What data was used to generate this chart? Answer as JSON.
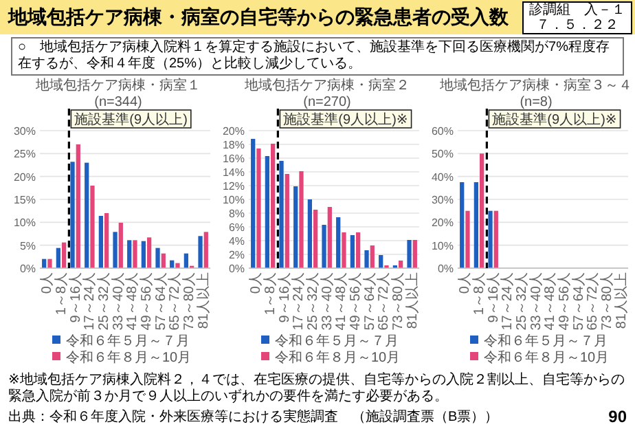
{
  "chart_data": [
    {
      "type": "other",
      "title": "地域包括ケア病棟・病室の自宅等からの緊急患者の受入数",
      "annotations": [
        "診調組　入－１",
        "７．５．２２",
        "○　地域包括ケア病棟入院料１を算定する施設において、施設基準を下回る医療機関が7%程度存在するが、令和４年度（25%）と比較し減少している。",
        "※地域包括ケア病棟入院料２，４では、在宅医療の提供、自宅等からの入院２割以上、自宅等からの緊急入院が前３か月で９人以上のいずれかの要件を満たす必要がある。",
        "出典：令和６年度入院・外来医療等における実態調査　（施設調査票（B票））",
        "90"
      ]
    },
    {
      "type": "bar",
      "title": "地域包括ケア病棟・病室１",
      "subtitle": "(n=344)",
      "categories": [
        "0人",
        "1～8人",
        "9～16人",
        "17～24人",
        "25～32人",
        "33～40人",
        "41～48人",
        "49～56人",
        "57～64人",
        "65～72人",
        "73～80人",
        "81人以上"
      ],
      "series": [
        {
          "name": "令和６年５月～７月",
          "color": "#1f5fbf",
          "values": [
            2.0,
            4.4,
            23.2,
            23.0,
            11.4,
            7.9,
            6.1,
            5.9,
            4.4,
            1.7,
            3.2,
            7.0
          ]
        },
        {
          "name": "令和６年８月～10月",
          "color": "#e5467a",
          "values": [
            2.0,
            5.6,
            27.0,
            18.0,
            12.0,
            9.9,
            6.1,
            6.7,
            3.2,
            1.1,
            0.5,
            7.9
          ]
        }
      ],
      "ylim": [
        0,
        30
      ],
      "yticks": [
        {
          "value": 0,
          "label": "0%"
        },
        {
          "value": 5,
          "label": "5%"
        },
        {
          "value": 10,
          "label": "10%"
        },
        {
          "value": 15,
          "label": "15%"
        },
        {
          "value": 20,
          "label": "20%"
        },
        {
          "value": 25,
          "label": "25%"
        },
        {
          "value": 30,
          "label": "30%"
        }
      ],
      "ref_lines": [
        {
          "axis": "x",
          "value": "9～16人",
          "label": "施設基準(9人以上)",
          "line_style": "dashed",
          "color": "#000000"
        }
      ],
      "grid": "y",
      "legend": "bottom"
    },
    {
      "type": "bar",
      "title": "地域包括ケア病棟・病室２",
      "subtitle": "(n=270)",
      "categories": [
        "0人",
        "1～8人",
        "9～16人",
        "17～24人",
        "25～32人",
        "33～40人",
        "41～48人",
        "49～56人",
        "57～64人",
        "65～72人",
        "73～80人",
        "81人以上"
      ],
      "series": [
        {
          "name": "令和６年５月～７月",
          "color": "#1f5fbf",
          "values": [
            18.8,
            16.3,
            15.6,
            11.9,
            10.0,
            6.3,
            7.4,
            4.8,
            2.6,
            1.9,
            0.4,
            4.1
          ]
        },
        {
          "name": "令和６年８月～10月",
          "color": "#e5467a",
          "values": [
            17.4,
            18.1,
            13.7,
            14.1,
            8.5,
            8.9,
            5.2,
            5.2,
            3.3,
            0.4,
            1.1,
            4.1
          ]
        }
      ],
      "ylim": [
        0,
        20
      ],
      "yticks": [
        {
          "value": 0,
          "label": "0%"
        },
        {
          "value": 2,
          "label": "2%"
        },
        {
          "value": 4,
          "label": "4%"
        },
        {
          "value": 6,
          "label": "6%"
        },
        {
          "value": 8,
          "label": "8%"
        },
        {
          "value": 10,
          "label": "10%"
        },
        {
          "value": 12,
          "label": "12%"
        },
        {
          "value": 14,
          "label": "14%"
        },
        {
          "value": 16,
          "label": "16%"
        },
        {
          "value": 18,
          "label": "18%"
        },
        {
          "value": 20,
          "label": "20%"
        }
      ],
      "ref_lines": [
        {
          "axis": "x",
          "value": "9～16人",
          "label": "施設基準(9人以上)※",
          "line_style": "dashed",
          "color": "#000000"
        }
      ],
      "grid": "y",
      "legend": "bottom"
    },
    {
      "type": "bar",
      "title": "地域包括ケア病棟・病室３～４",
      "subtitle": "(n=8)",
      "categories": [
        "0人",
        "1～8人",
        "9～16人",
        "17～24人",
        "25～32人",
        "33～40人",
        "41～48人",
        "49～56人",
        "57～64人",
        "65～72人",
        "73～80人",
        "81人以上"
      ],
      "series": [
        {
          "name": "令和６年５月～７月",
          "color": "#1f5fbf",
          "values": [
            37.5,
            37.5,
            25.0,
            0,
            0,
            0,
            0,
            0,
            0,
            0,
            0,
            0
          ]
        },
        {
          "name": "令和６年８月～10月",
          "color": "#e5467a",
          "values": [
            25.0,
            50.0,
            25.0,
            0,
            0,
            0,
            0,
            0,
            0,
            0,
            0,
            0
          ]
        }
      ],
      "ylim": [
        0,
        60
      ],
      "yticks": [
        {
          "value": 0,
          "label": "0%"
        },
        {
          "value": 10,
          "label": "10%"
        },
        {
          "value": 20,
          "label": "20%"
        },
        {
          "value": 30,
          "label": "30%"
        },
        {
          "value": 40,
          "label": "40%"
        },
        {
          "value": 50,
          "label": "50%"
        },
        {
          "value": 60,
          "label": "60%"
        }
      ],
      "ref_lines": [
        {
          "axis": "x",
          "value": "9～16人",
          "label": "施設基準(9人以上)※",
          "line_style": "dashed",
          "color": "#000000"
        }
      ],
      "grid": "y",
      "legend": "bottom"
    }
  ]
}
